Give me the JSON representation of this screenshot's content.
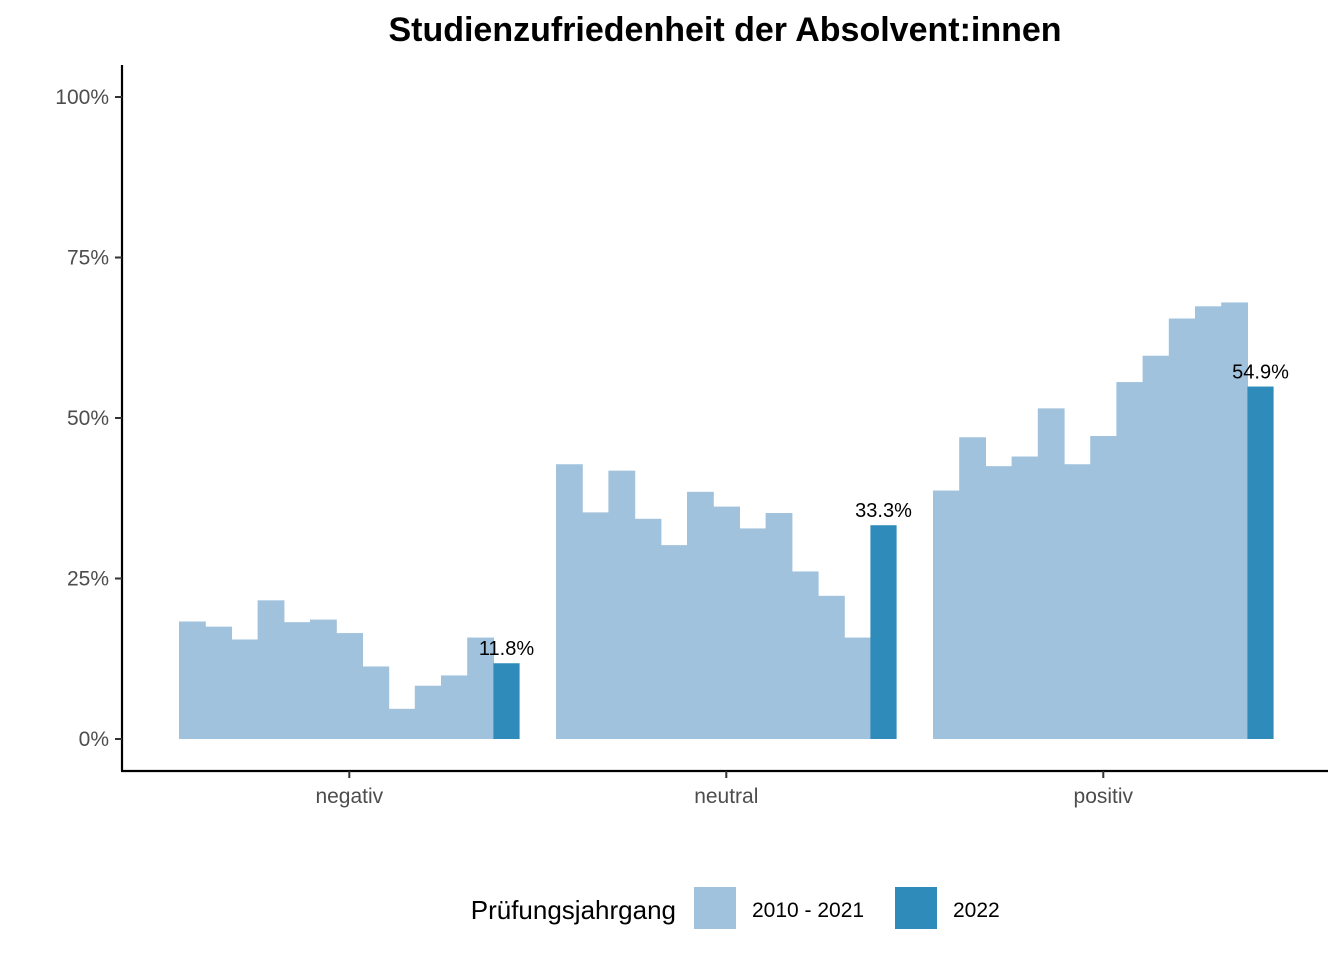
{
  "chart_data": {
    "type": "bar",
    "title": "Studienzufriedenheit der Absolvent:innen",
    "categories": [
      "negativ",
      "neutral",
      "positiv"
    ],
    "ylim": [
      0,
      1
    ],
    "yticks": [
      {
        "value": 0,
        "label": "0%"
      },
      {
        "value": 0.25,
        "label": "25%"
      },
      {
        "value": 0.5,
        "label": "50%"
      },
      {
        "value": 0.75,
        "label": "75%"
      },
      {
        "value": 1.0,
        "label": "100%"
      }
    ],
    "grid": false,
    "legend": {
      "title": "Prüfungsjahrgang",
      "position": "bottom",
      "entries": [
        "2010 - 2021",
        "2022"
      ]
    },
    "series": [
      {
        "name": "2010 - 2021",
        "color": "#a1c2dd",
        "bars_per_category": 12,
        "values": [
          [
            0.183,
            0.175,
            0.155,
            0.216,
            0.182,
            0.186,
            0.165,
            0.113,
            0.047,
            0.083,
            0.099,
            0.158
          ],
          [
            0.428,
            0.353,
            0.418,
            0.343,
            0.302,
            0.385,
            0.362,
            0.328,
            0.352,
            0.261,
            0.223,
            0.158
          ],
          [
            0.387,
            0.47,
            0.425,
            0.44,
            0.515,
            0.428,
            0.472,
            0.556,
            0.597,
            0.655,
            0.674,
            0.68
          ]
        ]
      },
      {
        "name": "2022",
        "color": "#2f8cba",
        "values": [
          0.118,
          0.333,
          0.549
        ],
        "labels": [
          "11.8%",
          "33.3%",
          "54.9%"
        ]
      }
    ]
  }
}
